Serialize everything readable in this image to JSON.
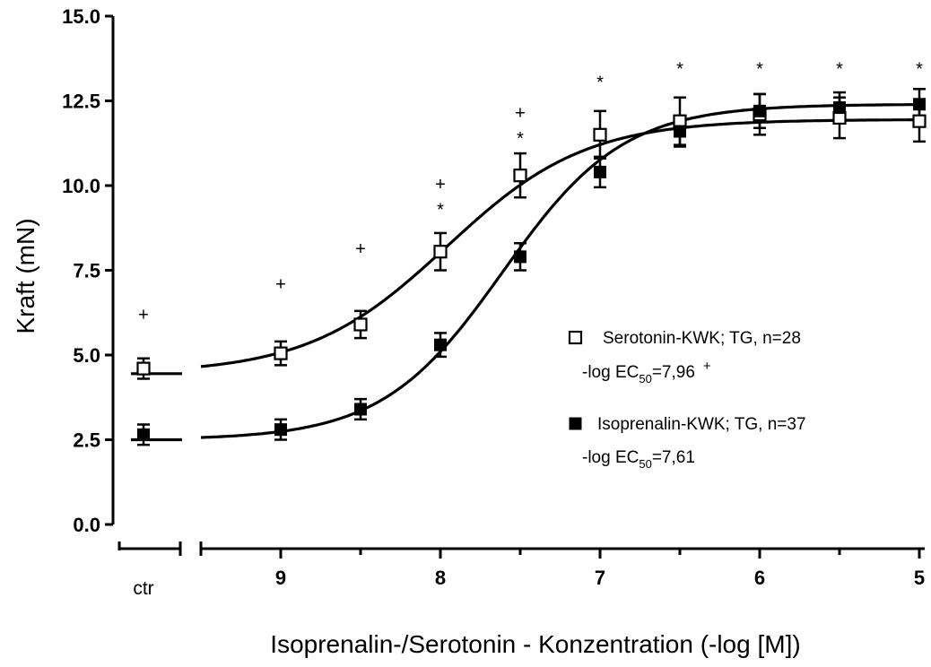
{
  "chart_data": {
    "type": "scatter",
    "ylabel": "Kraft (mN)",
    "xlabel": "Isoprenalin-/Serotonin - Konzentration (-log [M])",
    "ylim": [
      0,
      15
    ],
    "yticks": [
      "0.0",
      "2.5",
      "5.0",
      "7.5",
      "10.0",
      "12.5",
      "15.0"
    ],
    "x_scale": "-log [M], reversed (9 on left, 5 on right), broken axis with separate control segment",
    "xticks": [
      {
        "x": 9,
        "label": "9"
      },
      {
        "x": 8,
        "label": "8"
      },
      {
        "x": 7,
        "label": "7"
      },
      {
        "x": 6,
        "label": "6"
      },
      {
        "x": 5,
        "label": "5"
      }
    ],
    "control_label": "ctr",
    "series": [
      {
        "name": "Serotonin-KWK; TG, n=28",
        "marker": "open-square",
        "ec50_prefix": "-log EC",
        "ec50_sub": "50",
        "ec50_value": "=7,96",
        "ec50_mark": "+",
        "control": {
          "y": 4.6,
          "err": 0.3
        },
        "points": [
          {
            "x": 9.0,
            "y": 5.05,
            "err": 0.35
          },
          {
            "x": 8.5,
            "y": 5.9,
            "err": 0.4
          },
          {
            "x": 8.0,
            "y": 8.05,
            "err": 0.55
          },
          {
            "x": 7.5,
            "y": 10.3,
            "err": 0.65
          },
          {
            "x": 7.0,
            "y": 11.5,
            "err": 0.7
          },
          {
            "x": 6.5,
            "y": 11.9,
            "err": 0.7
          },
          {
            "x": 6.0,
            "y": 12.1,
            "err": 0.6
          },
          {
            "x": 5.5,
            "y": 12.0,
            "err": 0.6
          },
          {
            "x": 5.0,
            "y": 11.9,
            "err": 0.6
          }
        ],
        "fit": {
          "bottom": 4.45,
          "top": 11.95,
          "logEC50": 7.96,
          "hill": 1.0
        }
      },
      {
        "name": "Isoprenalin-KWK; TG, n=37",
        "marker": "filled-square",
        "ec50_prefix": "-log EC",
        "ec50_sub": "50",
        "ec50_value": "=7,61",
        "ec50_mark": "",
        "control": {
          "y": 2.65,
          "err": 0.3
        },
        "points": [
          {
            "x": 9.0,
            "y": 2.8,
            "err": 0.3
          },
          {
            "x": 8.5,
            "y": 3.4,
            "err": 0.3
          },
          {
            "x": 8.0,
            "y": 5.3,
            "err": 0.35
          },
          {
            "x": 7.5,
            "y": 7.9,
            "err": 0.4
          },
          {
            "x": 7.0,
            "y": 10.4,
            "err": 0.45
          },
          {
            "x": 6.5,
            "y": 11.6,
            "err": 0.45
          },
          {
            "x": 6.0,
            "y": 12.2,
            "err": 0.5
          },
          {
            "x": 5.5,
            "y": 12.3,
            "err": 0.45
          },
          {
            "x": 5.0,
            "y": 12.4,
            "err": 0.45
          }
        ],
        "fit": {
          "bottom": 2.5,
          "top": 12.4,
          "logEC50": 7.61,
          "hill": 1.15
        }
      }
    ],
    "significance": [
      {
        "x": "ctr",
        "y": 6.2,
        "label": "+"
      },
      {
        "x": 9.0,
        "y": 7.1,
        "label": "+"
      },
      {
        "x": 8.5,
        "y": 8.15,
        "label": "+"
      },
      {
        "x": 8.0,
        "y": 10.05,
        "label": "+"
      },
      {
        "x": 8.0,
        "y": 9.3,
        "label": "*"
      },
      {
        "x": 7.5,
        "y": 12.15,
        "label": "+"
      },
      {
        "x": 7.5,
        "y": 11.4,
        "label": "*"
      },
      {
        "x": 7.0,
        "y": 13.05,
        "label": "*"
      },
      {
        "x": 6.5,
        "y": 13.45,
        "label": "*"
      },
      {
        "x": 6.0,
        "y": 13.45,
        "label": "*"
      },
      {
        "x": 5.5,
        "y": 13.45,
        "label": "*"
      },
      {
        "x": 5.0,
        "y": 13.45,
        "label": "*"
      }
    ],
    "legend_position": "center-right"
  }
}
